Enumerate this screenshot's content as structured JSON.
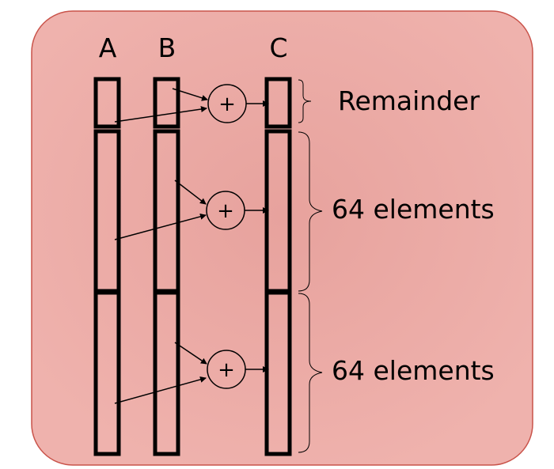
{
  "vectors": [
    {
      "id": "a",
      "label": "A"
    },
    {
      "id": "b",
      "label": "B"
    },
    {
      "id": "c",
      "label": "C"
    }
  ],
  "operator": "+",
  "segments": [
    {
      "id": "remainder",
      "label": "Remainder"
    },
    {
      "id": "block1",
      "label": "64 elements"
    },
    {
      "id": "block2",
      "label": "64 elements"
    }
  ],
  "colors": {
    "panel_fill": "#eba9a4",
    "panel_stroke": "#c9534a",
    "line": "#000000"
  }
}
